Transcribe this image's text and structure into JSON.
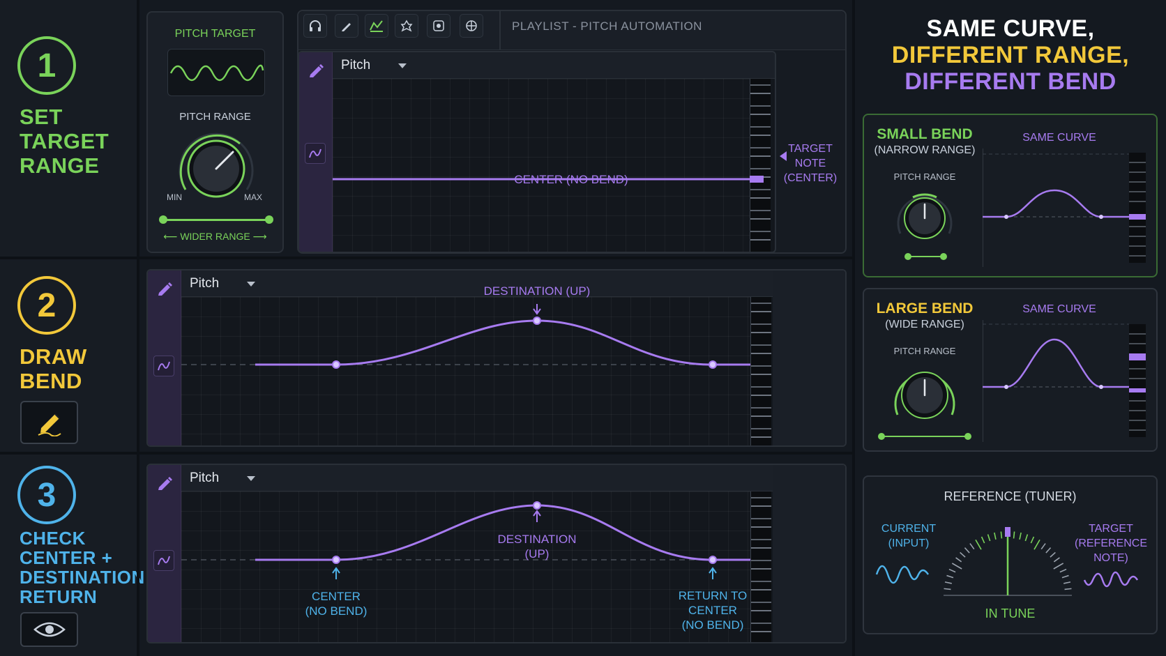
{
  "steps": [
    {
      "number": "1",
      "title_lines": [
        "SET",
        "TARGET",
        "RANGE"
      ]
    },
    {
      "number": "2",
      "title_lines": [
        "DRAW",
        "BEND"
      ]
    },
    {
      "number": "3",
      "title_lines": [
        "CHECK",
        "CENTER +",
        "DESTINATION +",
        "RETURN"
      ]
    }
  ],
  "pitch_target_panel": {
    "title": "PITCH TARGET",
    "range_label": "PITCH RANGE",
    "min_label": "MIN",
    "max_label": "MAX",
    "wider_label": "WIDER RANGE"
  },
  "toolbar": {
    "title": "PLAYLIST - PITCH AUTOMATION",
    "icons": [
      "headphones-icon",
      "pencil-icon",
      "automation-icon",
      "plugin-icon",
      "record-icon",
      "snap-icon"
    ]
  },
  "lanes": [
    {
      "param": "Pitch"
    },
    {
      "param": "Pitch"
    },
    {
      "param": "Pitch"
    }
  ],
  "lane1": {
    "center_label": "CENTER (NO BEND)",
    "target_note_label": [
      "TARGET",
      "NOTE",
      "(CENTER)"
    ]
  },
  "lane2": {
    "destination_label": "DESTINATION (UP)"
  },
  "lane3": {
    "destination_label": [
      "DESTINATION",
      "(UP)"
    ],
    "center_label": [
      "CENTER",
      "(NO BEND)"
    ],
    "return_label": [
      "RETURN TO",
      "CENTER",
      "(NO BEND)"
    ]
  },
  "right_header": {
    "line1": "SAME CURVE,",
    "line2": "DIFFERENT RANGE,",
    "line3": "DIFFERENT BEND"
  },
  "small_bend": {
    "title": "SMALL BEND",
    "subtitle": "(NARROW RANGE)",
    "range_label": "PITCH RANGE",
    "curve_label": "SAME CURVE"
  },
  "large_bend": {
    "title": "LARGE BEND",
    "subtitle": "(WIDE RANGE)",
    "range_label": "PITCH RANGE",
    "curve_label": "SAME CURVE"
  },
  "tuner": {
    "title": "REFERENCE (TUNER)",
    "current_label": [
      "CURRENT",
      "(INPUT)"
    ],
    "target_label": [
      "TARGET",
      "(REFERENCE NOTE)"
    ],
    "status": "IN TUNE"
  },
  "colors": {
    "green": "#7ad35a",
    "yellow": "#f2c83a",
    "blue": "#4fb3ea",
    "purple": "#a77bf0",
    "background": "#141920"
  }
}
